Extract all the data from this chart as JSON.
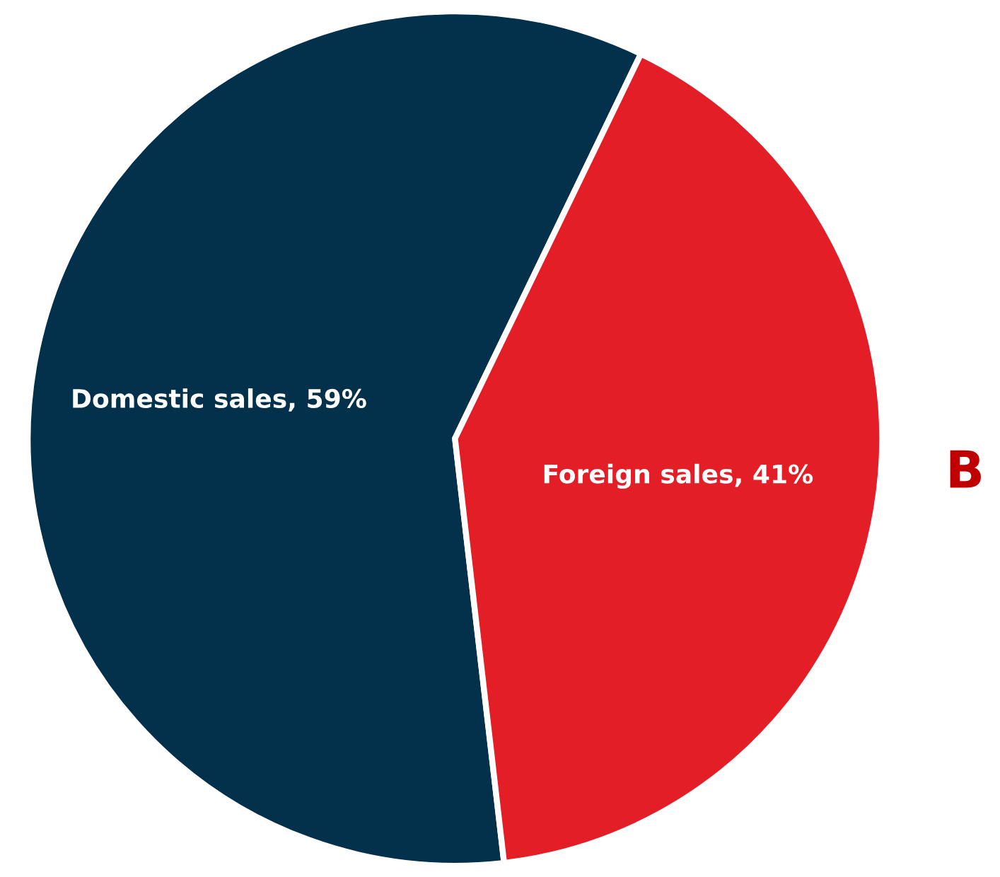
{
  "chart_data": {
    "type": "pie",
    "categories": [
      "Domestic sales",
      "Foreign sales"
    ],
    "values": [
      59,
      41
    ],
    "colors": [
      "#03304a",
      "#e31e26"
    ],
    "value_labels": [
      ", 59%",
      ", 41%"
    ],
    "annotations": [
      "B"
    ]
  }
}
